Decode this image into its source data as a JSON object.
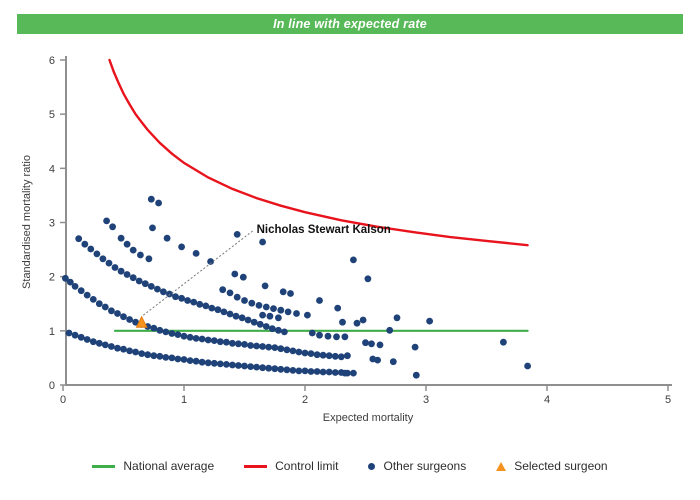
{
  "header": {
    "title": "In line with expected rate",
    "bg_color": "#57b957"
  },
  "chart_data": {
    "type": "scatter",
    "xlabel": "Expected mortality",
    "ylabel": "Standardised mortality ratio",
    "xlim": [
      0,
      5
    ],
    "ylim": [
      0,
      6
    ],
    "xticks": [
      0,
      1,
      2,
      3,
      4,
      5
    ],
    "yticks": [
      0,
      1,
      2,
      3,
      4,
      5,
      6
    ],
    "grid": false,
    "annotation": {
      "label": "Nicholas Stewart Kalson",
      "target": [
        0.65,
        1.15
      ],
      "text_pos": [
        1.6,
        2.88
      ]
    },
    "series": [
      {
        "name": "National average",
        "type": "line",
        "color": "#3fae49",
        "width": 2.2,
        "points": [
          [
            0.43,
            1
          ],
          [
            3.84,
            1
          ]
        ]
      },
      {
        "name": "Control limit",
        "type": "line",
        "color": "#e8131c",
        "width": 2.4,
        "points": [
          [
            0.384,
            6.0
          ],
          [
            0.42,
            5.78
          ],
          [
            0.46,
            5.57
          ],
          [
            0.5,
            5.38
          ],
          [
            0.55,
            5.18
          ],
          [
            0.6,
            5.0
          ],
          [
            0.65,
            4.85
          ],
          [
            0.7,
            4.71
          ],
          [
            0.8,
            4.47
          ],
          [
            0.9,
            4.27
          ],
          [
            1.0,
            4.1
          ],
          [
            1.2,
            3.83
          ],
          [
            1.4,
            3.62
          ],
          [
            1.6,
            3.45
          ],
          [
            1.8,
            3.31
          ],
          [
            2.0,
            3.19
          ],
          [
            2.3,
            3.04
          ],
          [
            2.6,
            2.92
          ],
          [
            2.9,
            2.82
          ],
          [
            3.2,
            2.73
          ],
          [
            3.5,
            2.66
          ],
          [
            3.84,
            2.58
          ]
        ]
      },
      {
        "name": "Other surgeons",
        "type": "scatter",
        "color": "#1f4279",
        "radius": 3.4,
        "points": [
          [
            0.05,
            0.96
          ],
          [
            0.1,
            0.92
          ],
          [
            0.15,
            0.88
          ],
          [
            0.2,
            0.84
          ],
          [
            0.25,
            0.8
          ],
          [
            0.3,
            0.77
          ],
          [
            0.35,
            0.74
          ],
          [
            0.4,
            0.71
          ],
          [
            0.45,
            0.68
          ],
          [
            0.5,
            0.66
          ],
          [
            0.55,
            0.63
          ],
          [
            0.6,
            0.61
          ],
          [
            0.65,
            0.58
          ],
          [
            0.7,
            0.56
          ],
          [
            0.75,
            0.54
          ],
          [
            0.8,
            0.53
          ],
          [
            0.85,
            0.51
          ],
          [
            0.9,
            0.5
          ],
          [
            0.95,
            0.48
          ],
          [
            1.0,
            0.47
          ],
          [
            1.05,
            0.45
          ],
          [
            1.1,
            0.44
          ],
          [
            1.15,
            0.42
          ],
          [
            1.2,
            0.41
          ],
          [
            1.25,
            0.4
          ],
          [
            1.3,
            0.39
          ],
          [
            1.35,
            0.38
          ],
          [
            1.4,
            0.37
          ],
          [
            1.45,
            0.36
          ],
          [
            1.5,
            0.35
          ],
          [
            1.55,
            0.34
          ],
          [
            1.6,
            0.33
          ],
          [
            1.65,
            0.32
          ],
          [
            1.7,
            0.31
          ],
          [
            1.75,
            0.3
          ],
          [
            1.8,
            0.29
          ],
          [
            1.85,
            0.28
          ],
          [
            1.9,
            0.27
          ],
          [
            1.95,
            0.26
          ],
          [
            2.0,
            0.26
          ],
          [
            2.05,
            0.25
          ],
          [
            2.1,
            0.25
          ],
          [
            2.15,
            0.24
          ],
          [
            2.2,
            0.24
          ],
          [
            2.25,
            0.23
          ],
          [
            2.3,
            0.23
          ],
          [
            2.35,
            0.22
          ],
          [
            0.02,
            1.97
          ],
          [
            0.06,
            1.9
          ],
          [
            0.1,
            1.82
          ],
          [
            0.15,
            1.74
          ],
          [
            0.2,
            1.66
          ],
          [
            0.25,
            1.58
          ],
          [
            0.3,
            1.5
          ],
          [
            0.35,
            1.44
          ],
          [
            0.4,
            1.37
          ],
          [
            0.45,
            1.32
          ],
          [
            0.5,
            1.26
          ],
          [
            0.55,
            1.21
          ],
          [
            0.6,
            1.16
          ],
          [
            0.65,
            1.12
          ],
          [
            0.7,
            1.08
          ],
          [
            0.75,
            1.05
          ],
          [
            0.8,
            1.01
          ],
          [
            0.85,
            0.98
          ],
          [
            0.9,
            0.95
          ],
          [
            0.95,
            0.93
          ],
          [
            1.0,
            0.9
          ],
          [
            1.05,
            0.88
          ],
          [
            1.1,
            0.86
          ],
          [
            1.15,
            0.85
          ],
          [
            1.2,
            0.83
          ],
          [
            1.25,
            0.82
          ],
          [
            1.3,
            0.8
          ],
          [
            1.35,
            0.79
          ],
          [
            1.4,
            0.77
          ],
          [
            1.45,
            0.76
          ],
          [
            1.5,
            0.75
          ],
          [
            1.55,
            0.73
          ],
          [
            1.6,
            0.72
          ],
          [
            1.65,
            0.71
          ],
          [
            1.7,
            0.7
          ],
          [
            1.75,
            0.69
          ],
          [
            1.8,
            0.67
          ],
          [
            1.85,
            0.65
          ],
          [
            1.9,
            0.63
          ],
          [
            1.95,
            0.61
          ],
          [
            2.0,
            0.59
          ],
          [
            2.05,
            0.58
          ],
          [
            2.1,
            0.56
          ],
          [
            2.15,
            0.55
          ],
          [
            2.2,
            0.54
          ],
          [
            2.25,
            0.53
          ],
          [
            2.3,
            0.52
          ],
          [
            0.13,
            2.7
          ],
          [
            0.18,
            2.6
          ],
          [
            0.23,
            2.51
          ],
          [
            0.28,
            2.42
          ],
          [
            0.33,
            2.33
          ],
          [
            0.38,
            2.25
          ],
          [
            0.43,
            2.17
          ],
          [
            0.48,
            2.1
          ],
          [
            0.53,
            2.04
          ],
          [
            0.58,
            1.98
          ],
          [
            0.63,
            1.92
          ],
          [
            0.68,
            1.87
          ],
          [
            0.73,
            1.82
          ],
          [
            0.78,
            1.77
          ],
          [
            0.83,
            1.72
          ],
          [
            0.88,
            1.68
          ],
          [
            0.93,
            1.63
          ],
          [
            0.98,
            1.6
          ],
          [
            1.03,
            1.56
          ],
          [
            1.08,
            1.53
          ],
          [
            1.13,
            1.49
          ],
          [
            1.18,
            1.46
          ],
          [
            1.23,
            1.42
          ],
          [
            1.28,
            1.39
          ],
          [
            1.33,
            1.35
          ],
          [
            1.38,
            1.31
          ],
          [
            1.43,
            1.27
          ],
          [
            1.48,
            1.24
          ],
          [
            1.53,
            1.2
          ],
          [
            1.58,
            1.16
          ],
          [
            1.63,
            1.12
          ],
          [
            1.68,
            1.08
          ],
          [
            1.73,
            1.04
          ],
          [
            1.78,
            1.01
          ],
          [
            1.83,
            0.98
          ],
          [
            2.06,
            0.96
          ],
          [
            2.12,
            0.92
          ],
          [
            2.19,
            0.9
          ],
          [
            2.26,
            0.89
          ],
          [
            2.33,
            0.89
          ],
          [
            1.32,
            1.76
          ],
          [
            1.38,
            1.7
          ],
          [
            1.44,
            1.62
          ],
          [
            1.5,
            1.56
          ],
          [
            1.56,
            1.51
          ],
          [
            1.62,
            1.47
          ],
          [
            1.68,
            1.44
          ],
          [
            1.74,
            1.41
          ],
          [
            1.8,
            1.38
          ],
          [
            1.86,
            1.35
          ],
          [
            1.93,
            1.32
          ],
          [
            2.02,
            1.29
          ],
          [
            1.65,
            1.29
          ],
          [
            1.71,
            1.27
          ],
          [
            1.78,
            1.24
          ],
          [
            2.31,
            1.16
          ],
          [
            2.43,
            1.14
          ],
          [
            2.76,
            1.24
          ],
          [
            0.73,
            3.43
          ],
          [
            0.79,
            3.36
          ],
          [
            0.36,
            3.03
          ],
          [
            0.41,
            2.92
          ],
          [
            0.48,
            2.71
          ],
          [
            0.53,
            2.6
          ],
          [
            0.58,
            2.49
          ],
          [
            0.64,
            2.4
          ],
          [
            0.71,
            2.33
          ],
          [
            0.74,
            2.9
          ],
          [
            0.86,
            2.71
          ],
          [
            0.98,
            2.55
          ],
          [
            1.1,
            2.43
          ],
          [
            1.22,
            2.28
          ],
          [
            1.44,
            2.78
          ],
          [
            1.65,
            2.64
          ],
          [
            1.42,
            2.05
          ],
          [
            1.49,
            1.99
          ],
          [
            1.67,
            1.83
          ],
          [
            1.82,
            1.72
          ],
          [
            1.88,
            1.69
          ],
          [
            2.12,
            1.56
          ],
          [
            2.27,
            1.42
          ],
          [
            2.4,
            2.31
          ],
          [
            2.52,
            1.96
          ],
          [
            2.48,
            1.2
          ],
          [
            2.7,
            1.01
          ],
          [
            3.03,
            1.18
          ],
          [
            2.5,
            0.78
          ],
          [
            2.55,
            0.76
          ],
          [
            2.62,
            0.74
          ],
          [
            2.91,
            0.7
          ],
          [
            3.64,
            0.79
          ],
          [
            2.35,
            0.54
          ],
          [
            2.56,
            0.48
          ],
          [
            2.6,
            0.46
          ],
          [
            2.73,
            0.43
          ],
          [
            3.84,
            0.35
          ],
          [
            2.33,
            0.22
          ],
          [
            2.4,
            0.22
          ],
          [
            2.92,
            0.18
          ]
        ]
      },
      {
        "name": "Selected surgeon",
        "type": "triangle",
        "color": "#f6921e",
        "stroke": "#e27d12",
        "points": [
          [
            0.65,
            1.15
          ]
        ]
      }
    ]
  },
  "legend": {
    "items": [
      {
        "label": "National average",
        "swatch": "line",
        "color": "#3fae49"
      },
      {
        "label": "Control limit",
        "swatch": "line",
        "color": "#e8131c"
      },
      {
        "label": "Other surgeons",
        "swatch": "dot",
        "color": "#1f4279"
      },
      {
        "label": "Selected surgeon",
        "swatch": "triangle",
        "color": "#f6921e"
      }
    ]
  }
}
